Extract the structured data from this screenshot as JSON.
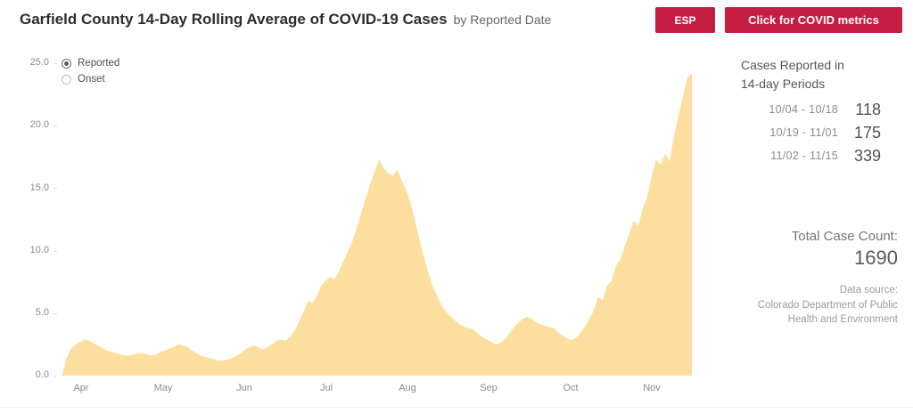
{
  "header": {
    "title": "Garfield County 14-Day Rolling Average of COVID-19 Cases",
    "subtitle": "by Reported Date",
    "esp_button_label": "ESP",
    "metrics_button_label": "Click for COVID metrics"
  },
  "legend": {
    "options": [
      {
        "label": "Reported",
        "selected": true
      },
      {
        "label": "Onset",
        "selected": false
      }
    ]
  },
  "chart_data": {
    "type": "area",
    "title": "Garfield County 14-Day Rolling Average of COVID-19 Cases by Reported Date",
    "xlabel": "",
    "ylabel": "",
    "ylim": [
      0,
      25
    ],
    "grid": false,
    "legend_position": "top-left",
    "x_tick_labels": [
      "Apr",
      "May",
      "Jun",
      "Jul",
      "Aug",
      "Sep",
      "Oct",
      "Nov"
    ],
    "y_tick_labels": [
      "25.0",
      "20.0",
      "15.0",
      "10.0",
      "5.0",
      "0.0"
    ],
    "y_ticks": [
      0,
      5,
      10,
      15,
      20,
      25
    ],
    "series": [
      {
        "name": "Reported",
        "color": "#fcdf9e",
        "x_start": "late Mar",
        "x_end": "mid Nov",
        "values": [
          0.2,
          1.5,
          2.2,
          2.5,
          2.7,
          2.9,
          2.8,
          2.6,
          2.4,
          2.2,
          2.0,
          1.9,
          1.8,
          1.7,
          1.6,
          1.6,
          1.7,
          1.8,
          1.8,
          1.7,
          1.6,
          1.7,
          1.9,
          2.0,
          2.2,
          2.3,
          2.5,
          2.4,
          2.3,
          2.0,
          1.8,
          1.6,
          1.5,
          1.4,
          1.3,
          1.2,
          1.2,
          1.3,
          1.4,
          1.6,
          1.8,
          2.1,
          2.3,
          2.4,
          2.2,
          2.1,
          2.3,
          2.5,
          2.8,
          2.9,
          2.8,
          3.1,
          3.6,
          4.3,
          5.1,
          6.0,
          5.8,
          6.4,
          7.2,
          7.6,
          7.9,
          7.7,
          8.4,
          9.2,
          10.0,
          10.8,
          11.9,
          13.1,
          14.3,
          15.4,
          16.4,
          17.3,
          16.6,
          16.2,
          16.0,
          16.5,
          15.6,
          14.9,
          13.8,
          12.4,
          10.8,
          9.5,
          8.2,
          7.1,
          6.3,
          5.6,
          5.1,
          4.7,
          4.4,
          4.1,
          3.9,
          3.8,
          3.7,
          3.4,
          3.1,
          2.9,
          2.7,
          2.5,
          2.6,
          2.9,
          3.3,
          3.8,
          4.2,
          4.5,
          4.7,
          4.6,
          4.3,
          4.1,
          4.0,
          3.9,
          3.8,
          3.5,
          3.2,
          3.0,
          2.8,
          3.0,
          3.4,
          3.9,
          4.5,
          5.2,
          6.3,
          6.0,
          7.2,
          7.6,
          8.8,
          9.3,
          10.4,
          11.4,
          12.4,
          12.0,
          13.4,
          14.3,
          16.0,
          17.3,
          16.9,
          17.8,
          17.1,
          19.2,
          20.8,
          22.3,
          23.9,
          24.2
        ]
      }
    ]
  },
  "sidebar": {
    "periods_heading_line1": "Cases Reported in",
    "periods_heading_line2": "14-day Periods",
    "periods": [
      {
        "range": "10/04 -  10/18",
        "count": "118"
      },
      {
        "range": "10/19 -  11/01",
        "count": "175"
      },
      {
        "range": "11/02 -  11/15",
        "count": "339"
      }
    ],
    "total_label": "Total Case Count:",
    "total_value": "1690",
    "source_label": "Data source:",
    "source_line1": "Colorado Department of Public",
    "source_line2": "Health and Environment"
  },
  "colors": {
    "accent": "#c41e42",
    "area_fill": "#fcdf9e",
    "title_text": "#2d2d2d",
    "axis_text": "#8a8a8a"
  }
}
